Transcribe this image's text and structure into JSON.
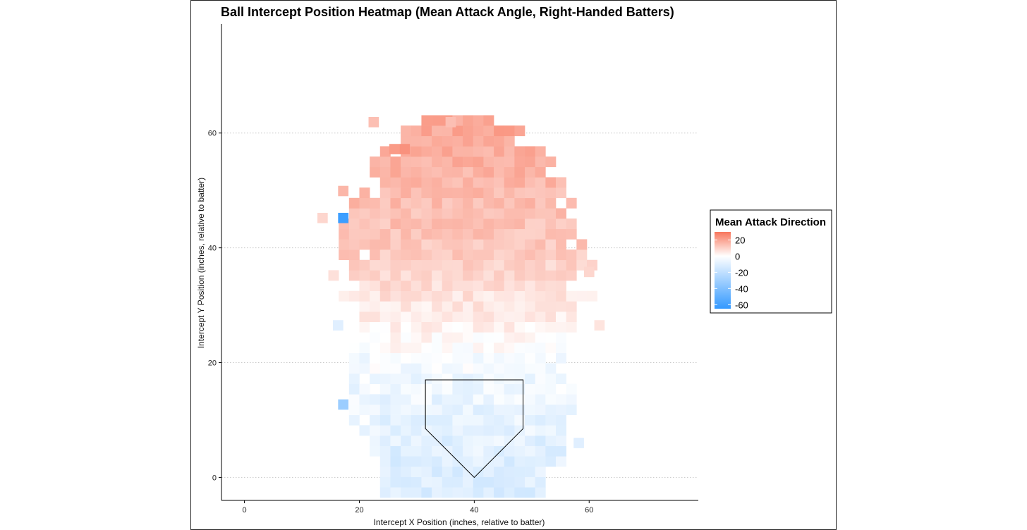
{
  "chart_data": {
    "type": "heatmap",
    "title": "Ball Intercept Position Heatmap (Mean Attack Angle, Right-Handed Batters)",
    "xlabel": "Intercept X Position (inches, relative to batter)",
    "ylabel": "Intercept Y Position (inches, relative to batter)",
    "xlim": [
      -4,
      79
    ],
    "ylim": [
      -4,
      79
    ],
    "x_ticks": [
      0,
      20,
      40,
      60
    ],
    "y_ticks": [
      0,
      20,
      40,
      60
    ],
    "grid": "horizontal dotted at major y ticks",
    "bin_size": 1.8,
    "color_scale": {
      "low": "#3399ff",
      "mid": "#ffffff",
      "high": "#f8765c",
      "min": -65,
      "max": 30
    },
    "legend": {
      "title": "Mean Attack Direction",
      "placement": "right",
      "labels": [
        "20",
        "0",
        "-20",
        "-40",
        "-60"
      ],
      "values": [
        20,
        0,
        -20,
        -40,
        -60
      ]
    },
    "home_plate": {
      "x": [
        31.5,
        48.5,
        48.5,
        40,
        31.5,
        31.5
      ],
      "y": [
        17,
        17,
        8.5,
        0,
        8.5,
        17
      ]
    },
    "cells_note": "",
    "value_model": "approximate",
    "outliers": [
      {
        "x": 17.2,
        "y": 45.2,
        "value": -62
      },
      {
        "x": 13.6,
        "y": 45.2,
        "value": 9
      },
      {
        "x": 17.2,
        "y": 49.9,
        "value": 16
      },
      {
        "x": 22.5,
        "y": 61.9,
        "value": 14
      },
      {
        "x": 35.9,
        "y": 61.9,
        "value": 14
      },
      {
        "x": 27.9,
        "y": 57.2,
        "value": 24
      },
      {
        "x": 26.1,
        "y": 57.2,
        "value": 22
      },
      {
        "x": 60.0,
        "y": 35.8,
        "value": 9
      },
      {
        "x": 61.8,
        "y": 26.5,
        "value": 6
      },
      {
        "x": 16.3,
        "y": 26.5,
        "value": -10
      },
      {
        "x": 17.2,
        "y": 12.7,
        "value": -32
      },
      {
        "x": 58.2,
        "y": 6.0,
        "value": -10
      }
    ]
  }
}
